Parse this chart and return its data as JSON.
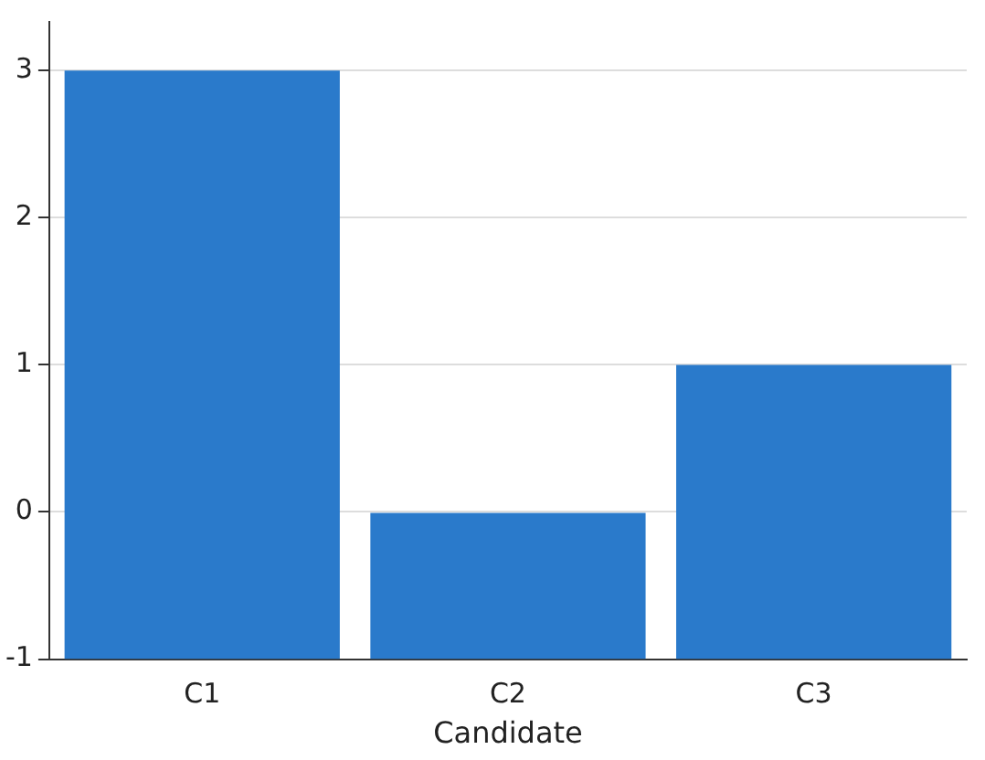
{
  "chart_data": {
    "type": "bar",
    "xlabel": "Candidate",
    "categories": [
      "C1",
      "C2",
      "C3"
    ],
    "values": [
      4,
      1,
      2
    ],
    "base": [
      -1,
      -1,
      -1
    ],
    "color": "#2a7acb",
    "ylim": [
      -1,
      3.33
    ],
    "yticks": [
      -1,
      0,
      1,
      2,
      3
    ],
    "grid": "y",
    "legend": false
  }
}
